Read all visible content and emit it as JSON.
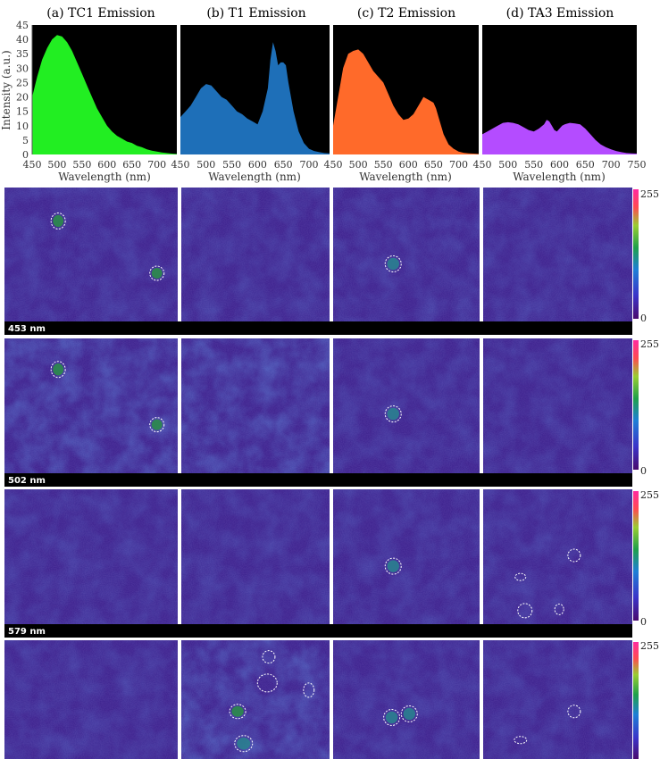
{
  "chart_data": [
    {
      "type": "area",
      "title": "(a) TC1 Emission",
      "xlabel": "Wavelength (nm)",
      "ylabel": "Intensity (a.u.)",
      "xlim": [
        450,
        740
      ],
      "ylim": [
        0,
        45
      ],
      "xticks": [
        "450",
        "500",
        "550",
        "600",
        "650",
        "700"
      ],
      "yticks": [
        "0",
        "5",
        "10",
        "15",
        "20",
        "25",
        "30",
        "35",
        "40",
        "45"
      ],
      "color": "#22ee22",
      "series": [
        {
          "x": [
            450,
            460,
            470,
            480,
            490,
            500,
            510,
            520,
            530,
            540,
            550,
            560,
            570,
            580,
            590,
            600,
            610,
            620,
            630,
            640,
            650,
            660,
            670,
            680,
            690,
            700,
            710,
            720,
            730,
            740
          ],
          "y": [
            20,
            27,
            33,
            37,
            40,
            41.5,
            41,
            39,
            36,
            32,
            28,
            24,
            20,
            16,
            13,
            10,
            8,
            6.5,
            5.5,
            4.5,
            4,
            3,
            2.5,
            1.8,
            1.3,
            1,
            0.7,
            0.5,
            0.3,
            0.2
          ]
        }
      ]
    },
    {
      "type": "area",
      "title": "(b) T1 Emission",
      "xlabel": "Wavelength (nm)",
      "xlim": [
        450,
        740
      ],
      "ylim": [
        0,
        45
      ],
      "xticks": [
        "450",
        "500",
        "550",
        "600",
        "650",
        "700"
      ],
      "color": "#1e6fb8",
      "series": [
        {
          "x": [
            450,
            460,
            470,
            480,
            490,
            500,
            510,
            520,
            530,
            540,
            550,
            560,
            570,
            580,
            590,
            600,
            610,
            620,
            625,
            630,
            635,
            640,
            645,
            650,
            655,
            660,
            670,
            680,
            690,
            700,
            710,
            720,
            730,
            740
          ],
          "y": [
            13,
            15,
            17,
            20,
            23,
            24.5,
            24,
            22,
            20,
            19,
            17,
            15,
            14,
            12.5,
            11.5,
            10.5,
            15,
            23,
            33,
            39,
            36,
            31,
            32,
            32,
            31,
            25,
            15,
            8,
            4,
            2,
            1.2,
            0.8,
            0.5,
            0.4
          ]
        }
      ]
    },
    {
      "type": "area",
      "title": "(c) T2 Emission",
      "xlabel": "Wavelength (nm)",
      "xlim": [
        450,
        740
      ],
      "ylim": [
        0,
        45
      ],
      "xticks": [
        "450",
        "500",
        "550",
        "600",
        "650",
        "700"
      ],
      "color": "#ff6a2a",
      "series": [
        {
          "x": [
            450,
            460,
            470,
            480,
            490,
            500,
            510,
            520,
            530,
            540,
            550,
            560,
            570,
            580,
            590,
            600,
            610,
            620,
            630,
            640,
            650,
            655,
            660,
            670,
            680,
            690,
            700,
            710,
            720,
            730,
            740
          ],
          "y": [
            10,
            20,
            30,
            35,
            36,
            36.5,
            35,
            32,
            29,
            27,
            25,
            21,
            17,
            14,
            12,
            12.5,
            14,
            17,
            20,
            19,
            18,
            16,
            13,
            7,
            3.5,
            2,
            1,
            0.6,
            0.4,
            0.3,
            0.2
          ]
        }
      ]
    },
    {
      "type": "area",
      "title": "(d) TA3 Emission",
      "xlabel": "Wavelength (nm)",
      "xlim": [
        450,
        750
      ],
      "ylim": [
        0,
        45
      ],
      "xticks": [
        "450",
        "500",
        "550",
        "600",
        "650",
        "700",
        "750"
      ],
      "color": "#b44cff",
      "series": [
        {
          "x": [
            450,
            460,
            470,
            480,
            490,
            500,
            510,
            520,
            530,
            540,
            550,
            560,
            570,
            575,
            580,
            585,
            590,
            595,
            600,
            605,
            610,
            620,
            630,
            640,
            650,
            660,
            670,
            680,
            690,
            700,
            710,
            720,
            730,
            740,
            750
          ],
          "y": [
            7,
            8,
            9,
            10,
            11,
            11.2,
            11,
            10.5,
            9.5,
            8.5,
            8,
            9,
            10.5,
            12,
            11.5,
            10,
            8.5,
            8,
            9,
            10,
            10.5,
            11,
            10.8,
            10.5,
            9,
            7,
            5,
            3.5,
            2.5,
            1.8,
            1.2,
            0.8,
            0.5,
            0.4,
            0.3
          ]
        }
      ]
    },
    {
      "type": "heatmap",
      "rows": [
        "453 nm",
        "502 nm",
        "579 nm",
        ""
      ],
      "columns": [
        "(a) TC1 Emission",
        "(b) T1 Emission",
        "(c) T2 Emission",
        "(d) TA3 Emission"
      ],
      "colorbar": {
        "min": "0",
        "max": "255"
      },
      "colors": {
        "background": "#3a1f8c",
        "cell_teal": "#2a7f8f",
        "cell_green": "#2b8c4a",
        "outline": "#ffffff"
      }
    }
  ]
}
